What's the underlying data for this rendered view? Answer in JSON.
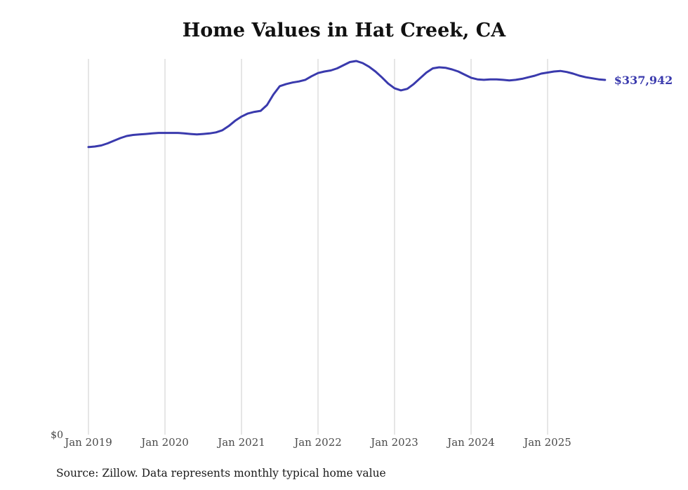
{
  "page": {
    "background_color": "#ffffff"
  },
  "chart_data": {
    "type": "line",
    "title": "Home Values in Hat Creek, CA",
    "source_note": "Source: Zillow. Data represents monthly typical home value",
    "end_label": "$337,942",
    "line_color": "#3a3aad",
    "grid_color": "#cccccc",
    "grid": "vertical-only",
    "legend_position": "none",
    "y_axis": {
      "label": "",
      "min": 0,
      "max": 358000,
      "tick_labels": [
        "$0"
      ]
    },
    "x_axis": {
      "label": "",
      "range": [
        "2019-01",
        "2025-10"
      ]
    },
    "x_tick_labels": [
      "Jan 2019",
      "Jan 2020",
      "Jan 2021",
      "Jan 2022",
      "Jan 2023",
      "Jan 2024",
      "Jan 2025"
    ],
    "series": [
      {
        "name": "Monthly typical home value",
        "x": [
          "2019-01",
          "2019-02",
          "2019-03",
          "2019-04",
          "2019-05",
          "2019-06",
          "2019-07",
          "2019-08",
          "2019-09",
          "2019-10",
          "2019-11",
          "2019-12",
          "2020-01",
          "2020-02",
          "2020-03",
          "2020-04",
          "2020-05",
          "2020-06",
          "2020-07",
          "2020-08",
          "2020-09",
          "2020-10",
          "2020-11",
          "2020-12",
          "2021-01",
          "2021-02",
          "2021-03",
          "2021-04",
          "2021-05",
          "2021-06",
          "2021-07",
          "2021-08",
          "2021-09",
          "2021-10",
          "2021-11",
          "2021-12",
          "2022-01",
          "2022-02",
          "2022-03",
          "2022-04",
          "2022-05",
          "2022-06",
          "2022-07",
          "2022-08",
          "2022-09",
          "2022-10",
          "2022-11",
          "2022-12",
          "2023-01",
          "2023-02",
          "2023-03",
          "2023-04",
          "2023-05",
          "2023-06",
          "2023-07",
          "2023-08",
          "2023-09",
          "2023-10",
          "2023-11",
          "2023-12",
          "2024-01",
          "2024-02",
          "2024-03",
          "2024-04",
          "2024-05",
          "2024-06",
          "2024-07",
          "2024-08",
          "2024-09",
          "2024-10",
          "2024-11",
          "2024-12",
          "2025-01",
          "2025-02",
          "2025-03",
          "2025-04",
          "2025-05",
          "2025-06",
          "2025-07",
          "2025-08",
          "2025-09",
          "2025-10"
        ],
        "values": [
          274000,
          274500,
          275500,
          277500,
          280000,
          282500,
          284500,
          285500,
          286000,
          286500,
          287000,
          287500,
          287500,
          287500,
          287500,
          287000,
          286500,
          286000,
          286500,
          287000,
          288000,
          290000,
          294000,
          299000,
          303000,
          306000,
          307500,
          308500,
          314000,
          324000,
          332000,
          334000,
          335500,
          336500,
          338000,
          341500,
          344500,
          346000,
          347000,
          349000,
          352000,
          355000,
          356000,
          354000,
          350500,
          346000,
          340500,
          334500,
          330000,
          328000,
          329500,
          334000,
          339500,
          345000,
          349000,
          350000,
          349500,
          348000,
          346000,
          343000,
          340000,
          338500,
          338000,
          338500,
          338500,
          338000,
          337500,
          338000,
          339000,
          340500,
          342000,
          344000,
          345000,
          346000,
          346500,
          345500,
          344000,
          342000,
          340500,
          339500,
          338500,
          337942
        ]
      }
    ]
  }
}
